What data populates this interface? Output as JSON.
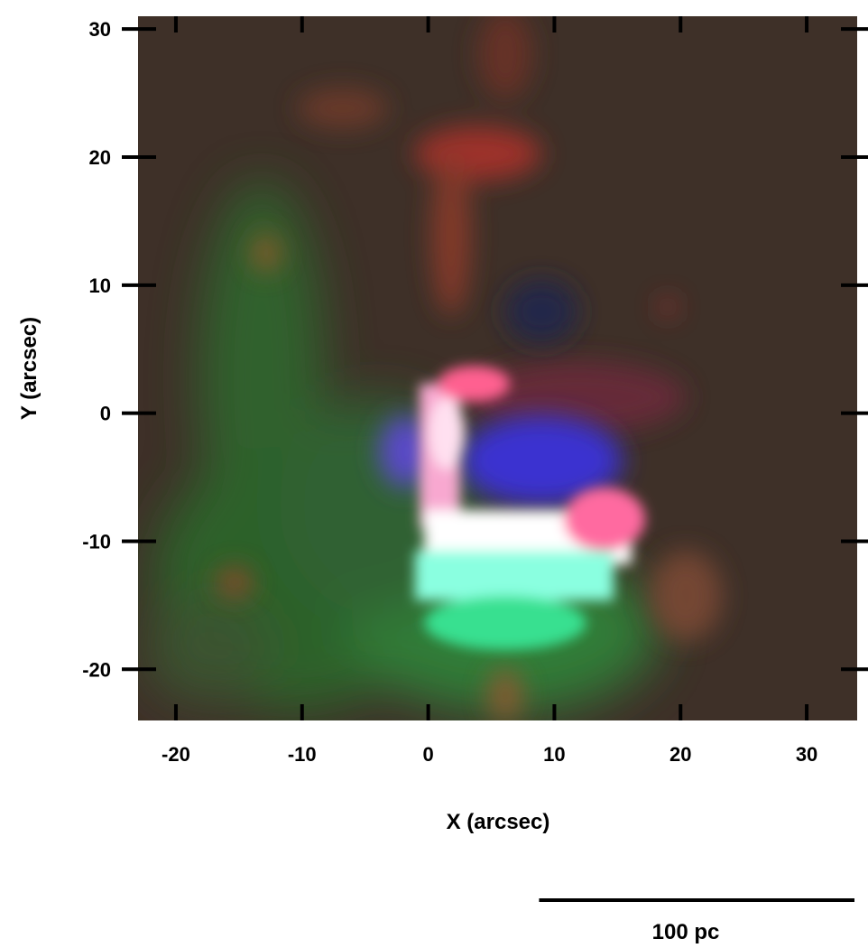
{
  "chart_data": {
    "type": "heatmap",
    "title": "",
    "xlabel": "X (arcsec)",
    "ylabel": "Y (arcsec)",
    "xlim": [
      -23,
      34
    ],
    "ylim": [
      -24,
      31
    ],
    "x_ticks": [
      -20,
      -10,
      0,
      10,
      20,
      30
    ],
    "y_ticks": [
      -20,
      -10,
      0,
      10,
      20,
      30
    ],
    "x_tick_labels": [
      "-20",
      "-10",
      "0",
      "10",
      "20",
      "30"
    ],
    "y_tick_labels": [
      "-20",
      "-10",
      "0",
      "10",
      "20",
      "30"
    ],
    "grid": false,
    "legend": "none",
    "color_channels": {
      "red": "#ff3b3b",
      "green": "#22e070",
      "blue": "#3a3aff"
    },
    "background_color": "#3e3028",
    "scale_bar": {
      "label": "100 pc",
      "length_arcsec": 25
    }
  }
}
